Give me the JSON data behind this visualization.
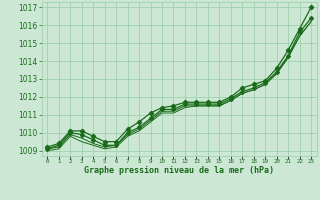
{
  "xlabel": "Graphe pression niveau de la mer (hPa)",
  "background_color": "#cce8d4",
  "grid_color": "#99ccaa",
  "line_color": "#1a6b1a",
  "x_ticks": [
    0,
    1,
    2,
    3,
    4,
    5,
    6,
    7,
    8,
    9,
    10,
    11,
    12,
    13,
    14,
    15,
    16,
    17,
    18,
    19,
    20,
    21,
    22,
    23
  ],
  "ylim": [
    1008.7,
    1017.3
  ],
  "xlim": [
    -0.5,
    23.5
  ],
  "yticks": [
    1009,
    1010,
    1011,
    1012,
    1013,
    1014,
    1015,
    1016,
    1017
  ],
  "series": {
    "line_top": [
      1009.2,
      1009.4,
      1010.1,
      1010.1,
      1009.8,
      1009.5,
      1009.5,
      1010.2,
      1010.6,
      1011.1,
      1011.4,
      1011.5,
      1011.7,
      1011.7,
      1011.7,
      1011.7,
      1012.0,
      1012.5,
      1012.7,
      1012.9,
      1013.6,
      1014.6,
      1015.8,
      1017.0
    ],
    "line_mid1": [
      1009.1,
      1009.3,
      1010.0,
      1009.9,
      1009.6,
      1009.3,
      1009.3,
      1010.0,
      1010.3,
      1010.8,
      1011.3,
      1011.3,
      1011.6,
      1011.6,
      1011.6,
      1011.6,
      1011.9,
      1012.3,
      1012.5,
      1012.8,
      1013.4,
      1014.3,
      1015.6,
      1016.4
    ],
    "line_mid2": [
      1009.1,
      1009.2,
      1009.9,
      1009.7,
      1009.4,
      1009.2,
      1009.3,
      1009.9,
      1010.2,
      1010.7,
      1011.2,
      1011.2,
      1011.5,
      1011.5,
      1011.5,
      1011.5,
      1011.8,
      1012.2,
      1012.4,
      1012.7,
      1013.3,
      1014.2,
      1015.4,
      1016.2
    ],
    "line_low": [
      1009.0,
      1009.1,
      1009.8,
      1009.5,
      1009.3,
      1009.1,
      1009.2,
      1009.8,
      1010.1,
      1010.6,
      1011.1,
      1011.1,
      1011.4,
      1011.5,
      1011.5,
      1011.5,
      1011.8,
      1012.2,
      1012.4,
      1012.7,
      1013.3,
      1014.2,
      1015.4,
      1016.2
    ]
  }
}
